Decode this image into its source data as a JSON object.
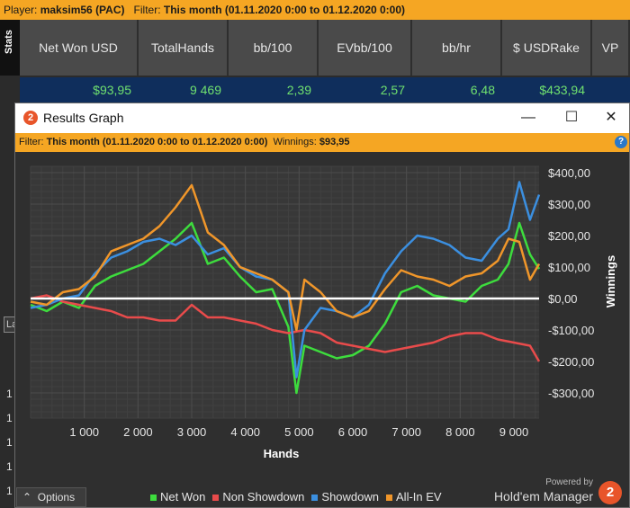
{
  "topbar": {
    "player_label": "Player: ",
    "player": "maksim56 (PAC)",
    "filter_label": "Filter: ",
    "filter": "This month (01.11.2020 0:00 to 01.12.2020 0:00)"
  },
  "stats_tab": "Stats",
  "stats": {
    "headers": [
      [
        "Net Won USD"
      ],
      [
        "Total",
        "Hands"
      ],
      [
        "bb/100"
      ],
      [
        "EV",
        "bb/100"
      ],
      [
        "bb/hr"
      ],
      [
        "$ USD",
        "Rake"
      ],
      [
        "VP"
      ]
    ],
    "values": [
      "$93,95",
      "9 469",
      "2,39",
      "2,57",
      "6,48",
      "$433,94",
      ""
    ]
  },
  "left_digits": [
    "1",
    "1",
    "1",
    "1",
    "1"
  ],
  "left_box": "La",
  "dialog": {
    "title": "Results Graph",
    "filter_label": "Filter: ",
    "filter": "This month (01.11.2020 0:00 to 01.12.2020 0:00)",
    "winnings_label": "Winnings: ",
    "winnings": "$93,95",
    "help": "?",
    "options": "Options",
    "powered": "Powered by",
    "brand": "Hold'em Manager",
    "logo": "2"
  },
  "chart_data": {
    "type": "line",
    "xlabel": "Hands",
    "ylabel": "Winnings",
    "xlim": [
      0,
      9469
    ],
    "ylim": [
      -380,
      420
    ],
    "x_ticks": [
      1000,
      2000,
      3000,
      4000,
      5000,
      6000,
      7000,
      8000,
      9000
    ],
    "x_tick_labels": [
      "1 000",
      "2 000",
      "3 000",
      "4 000",
      "5 000",
      "6 000",
      "7 000",
      "8 000",
      "9 000"
    ],
    "y_ticks": [
      400,
      300,
      200,
      100,
      0,
      -100,
      -200,
      -300
    ],
    "y_tick_labels": [
      "$400,00",
      "$300,00",
      "$200,00",
      "$100,00",
      "$0,00",
      "-$100,00",
      "-$200,00",
      "-$300,00"
    ],
    "grid": true,
    "legend": "bottom",
    "series": [
      {
        "name": "Net Won",
        "color": "#3ddc3d",
        "x": [
          0,
          300,
          600,
          900,
          1200,
          1500,
          1800,
          2100,
          2400,
          2700,
          3000,
          3300,
          3600,
          3900,
          4200,
          4500,
          4800,
          4950,
          5100,
          5400,
          5700,
          6000,
          6300,
          6600,
          6900,
          7200,
          7500,
          7800,
          8100,
          8400,
          8700,
          8900,
          9100,
          9300,
          9469
        ],
        "y": [
          -20,
          -40,
          -10,
          -30,
          40,
          70,
          90,
          110,
          150,
          190,
          240,
          110,
          130,
          70,
          20,
          30,
          -90,
          -300,
          -150,
          -170,
          -190,
          -180,
          -150,
          -80,
          20,
          40,
          10,
          0,
          -10,
          40,
          60,
          110,
          240,
          140,
          94
        ]
      },
      {
        "name": "Non Showdown",
        "color": "#e94b4b",
        "x": [
          0,
          300,
          600,
          900,
          1200,
          1500,
          1800,
          2100,
          2400,
          2700,
          3000,
          3300,
          3600,
          3900,
          4200,
          4500,
          4800,
          5100,
          5400,
          5700,
          6000,
          6300,
          6600,
          6900,
          7200,
          7500,
          7800,
          8100,
          8400,
          8700,
          9000,
          9300,
          9469
        ],
        "y": [
          0,
          10,
          -10,
          -20,
          -30,
          -40,
          -60,
          -60,
          -70,
          -70,
          -20,
          -60,
          -60,
          -70,
          -80,
          -100,
          -110,
          -100,
          -110,
          -140,
          -150,
          -160,
          -170,
          -160,
          -150,
          -140,
          -120,
          -110,
          -110,
          -130,
          -140,
          -150,
          -200
        ]
      },
      {
        "name": "Showdown",
        "color": "#3b8fe0",
        "x": [
          0,
          300,
          600,
          900,
          1200,
          1500,
          1800,
          2100,
          2400,
          2700,
          3000,
          3300,
          3600,
          3900,
          4200,
          4500,
          4800,
          4950,
          5100,
          5400,
          5700,
          6000,
          6300,
          6600,
          6900,
          7200,
          7500,
          7800,
          8100,
          8400,
          8700,
          8900,
          9100,
          9300,
          9469
        ],
        "y": [
          -30,
          -20,
          0,
          10,
          80,
          130,
          150,
          180,
          190,
          170,
          200,
          140,
          160,
          100,
          70,
          60,
          20,
          -250,
          -100,
          -30,
          -40,
          -60,
          -20,
          80,
          150,
          200,
          190,
          170,
          130,
          120,
          190,
          220,
          370,
          250,
          330
        ]
      },
      {
        "name": "All-In EV",
        "color": "#f0962a",
        "x": [
          0,
          300,
          600,
          900,
          1200,
          1500,
          1800,
          2100,
          2400,
          2700,
          3000,
          3300,
          3600,
          3900,
          4200,
          4500,
          4800,
          4950,
          5100,
          5400,
          5700,
          6000,
          6300,
          6600,
          6900,
          7200,
          7500,
          7800,
          8100,
          8400,
          8700,
          8900,
          9100,
          9300,
          9469
        ],
        "y": [
          -10,
          -20,
          20,
          30,
          70,
          150,
          170,
          190,
          230,
          290,
          360,
          210,
          170,
          100,
          80,
          60,
          20,
          -100,
          60,
          20,
          -40,
          -60,
          -40,
          30,
          90,
          70,
          60,
          40,
          70,
          80,
          120,
          190,
          180,
          60,
          110
        ]
      }
    ]
  }
}
